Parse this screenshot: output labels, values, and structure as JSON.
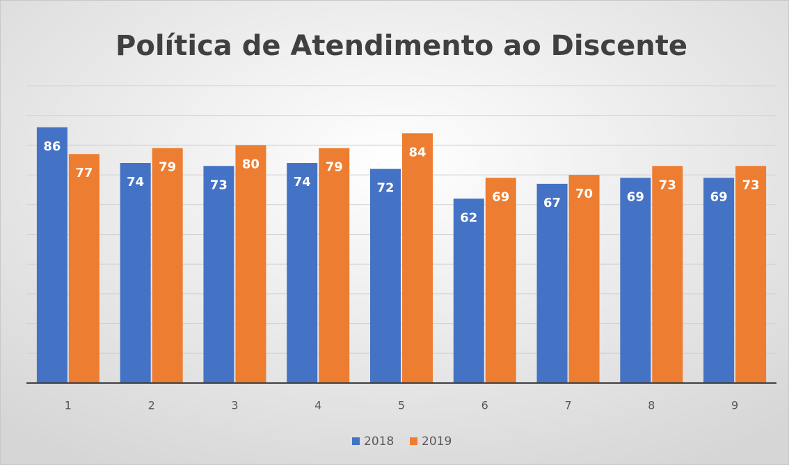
{
  "chart_data": {
    "type": "bar",
    "title": "Política de Atendimento ao Discente",
    "categories": [
      "1",
      "2",
      "3",
      "4",
      "5",
      "6",
      "7",
      "8",
      "9"
    ],
    "series": [
      {
        "name": "2018",
        "color": "#4472c4",
        "values": [
          86,
          74,
          73,
          74,
          72,
          62,
          67,
          69,
          69
        ]
      },
      {
        "name": "2019",
        "color": "#ed7d31",
        "values": [
          77,
          79,
          80,
          79,
          84,
          69,
          70,
          73,
          73
        ]
      }
    ],
    "ylim": [
      0,
      100
    ],
    "yticks": [
      0,
      10,
      20,
      30,
      40,
      50,
      60,
      70,
      80,
      90,
      100
    ],
    "grid": true,
    "legend": "bottom"
  }
}
